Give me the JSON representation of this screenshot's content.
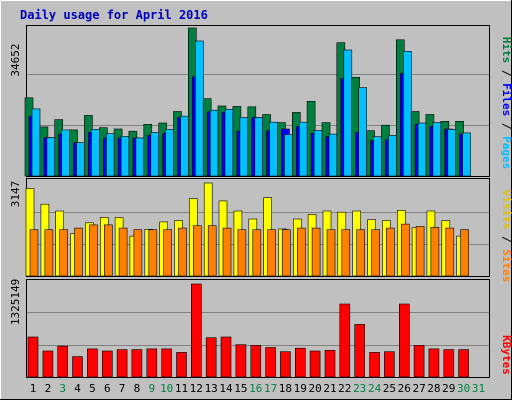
{
  "title": "Daily usage for April 2016",
  "colors": {
    "title": "#0000c0",
    "background": "#c0c0c0",
    "hits": "#008040",
    "files": "#0000ff",
    "pages": "#00c0ff",
    "visits": "#ffff00",
    "sites": "#ff8000",
    "kbytes": "#ff0000",
    "weekday_label": "#000000",
    "weekend_label": "#008040"
  },
  "panels": {
    "top": {
      "max_label": "34652",
      "legend_pages": "Pages",
      "legend_files": "Files",
      "legend_hits": "Hits",
      "sep": " / "
    },
    "middle": {
      "max_label": "3147",
      "legend_sites": "Sites",
      "legend_visits": "Visits",
      "sep": " / "
    },
    "bottom": {
      "max_label": "1325149",
      "legend_kbytes": "KBytes"
    }
  },
  "chart_data": [
    {
      "type": "bar",
      "title": "Daily usage for April 2016",
      "categories": [
        "1",
        "2",
        "3",
        "4",
        "5",
        "6",
        "7",
        "8",
        "9",
        "10",
        "11",
        "12",
        "13",
        "14",
        "15",
        "16",
        "17",
        "18",
        "19",
        "20",
        "21",
        "22",
        "23",
        "24",
        "25",
        "26",
        "27",
        "28",
        "29",
        "30",
        "31"
      ],
      "weekend_days": [
        3,
        9,
        10,
        16,
        17,
        23,
        24,
        30,
        31
      ],
      "ylim": [
        0,
        34652
      ],
      "series": [
        {
          "name": "Hits",
          "values": [
            18300,
            11500,
            13200,
            10800,
            14200,
            11300,
            11000,
            10500,
            12100,
            12400,
            15100,
            34652,
            18100,
            16400,
            16300,
            16200,
            14400,
            12500,
            14900,
            17500,
            12500,
            31200,
            23100,
            10600,
            11900,
            31900,
            15100,
            14400,
            12800,
            12800,
            0
          ]
        },
        {
          "name": "Files",
          "values": [
            14000,
            9000,
            9800,
            7800,
            10200,
            8900,
            8900,
            8900,
            9500,
            10000,
            13700,
            23200,
            15000,
            14900,
            10500,
            13700,
            10600,
            11000,
            11600,
            10000,
            9200,
            22800,
            10200,
            8300,
            8500,
            24000,
            12100,
            11600,
            11000,
            9800,
            0
          ]
        },
        {
          "name": "Pages",
          "values": [
            15700,
            9000,
            10800,
            7800,
            10900,
            9900,
            9300,
            8900,
            10200,
            10900,
            14000,
            31600,
            15400,
            15600,
            13700,
            13700,
            12600,
            9700,
            12600,
            10600,
            9800,
            29500,
            20700,
            9200,
            9500,
            29200,
            12400,
            12500,
            10900,
            10100,
            0
          ]
        }
      ]
    },
    {
      "type": "bar",
      "categories": [
        "1",
        "2",
        "3",
        "4",
        "5",
        "6",
        "7",
        "8",
        "9",
        "10",
        "11",
        "12",
        "13",
        "14",
        "15",
        "16",
        "17",
        "18",
        "19",
        "20",
        "21",
        "22",
        "23",
        "24",
        "25",
        "26",
        "27",
        "28",
        "29",
        "30",
        "31"
      ],
      "ylim": [
        0,
        3147
      ],
      "series": [
        {
          "name": "Visits",
          "values": [
            2960,
            2430,
            2200,
            1440,
            1800,
            1980,
            1980,
            1350,
            1580,
            1830,
            1880,
            2620,
            3147,
            2540,
            2200,
            1930,
            2650,
            1590,
            1930,
            2080,
            2200,
            2160,
            2200,
            1910,
            1880,
            2220,
            1630,
            2200,
            1870,
            1350,
            0
          ]
        },
        {
          "name": "Sites",
          "values": [
            580,
            580,
            580,
            600,
            640,
            640,
            600,
            580,
            580,
            580,
            600,
            630,
            630,
            600,
            580,
            580,
            580,
            580,
            600,
            600,
            580,
            580,
            580,
            580,
            600,
            650,
            620,
            610,
            600,
            580,
            0
          ]
        }
      ]
    },
    {
      "type": "bar",
      "categories": [
        "1",
        "2",
        "3",
        "4",
        "5",
        "6",
        "7",
        "8",
        "9",
        "10",
        "11",
        "12",
        "13",
        "14",
        "15",
        "16",
        "17",
        "18",
        "19",
        "20",
        "21",
        "22",
        "23",
        "24",
        "25",
        "26",
        "27",
        "28",
        "29",
        "30",
        "31"
      ],
      "ylim": [
        0,
        1325149
      ],
      "series": [
        {
          "name": "KBytes",
          "values": [
            570000,
            370000,
            440000,
            290000,
            400000,
            370000,
            390000,
            390000,
            400000,
            400000,
            350000,
            1325149,
            560000,
            570000,
            460000,
            450000,
            420000,
            360000,
            410000,
            370000,
            380000,
            1040000,
            750000,
            350000,
            360000,
            1040000,
            450000,
            400000,
            390000,
            390000,
            0
          ]
        }
      ]
    }
  ]
}
